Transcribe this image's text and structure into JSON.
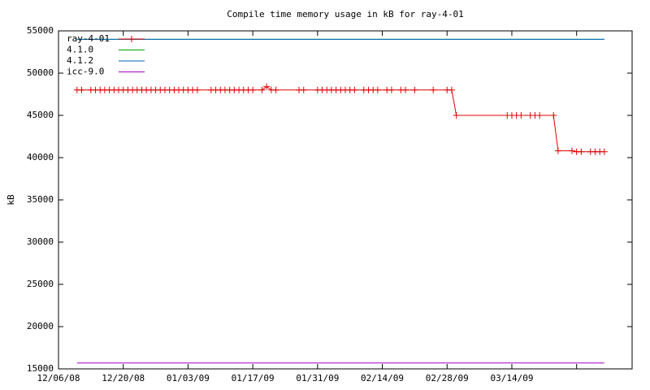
{
  "chart_data": {
    "type": "line",
    "title": "Compile time memory usage in kB for ray-4-01",
    "ylabel": "kB",
    "xlim": [
      "2008-12-06",
      "2009-04-09"
    ],
    "xticks": [
      {
        "value": "2008-12-06",
        "label": "12/06/08"
      },
      {
        "value": "2008-12-20",
        "label": "12/20/08"
      },
      {
        "value": "2009-01-03",
        "label": "01/03/09"
      },
      {
        "value": "2009-01-17",
        "label": "01/17/09"
      },
      {
        "value": "2009-01-31",
        "label": "01/31/09"
      },
      {
        "value": "2009-02-14",
        "label": "02/14/09"
      },
      {
        "value": "2009-02-28",
        "label": "02/28/09"
      },
      {
        "value": "2009-03-14",
        "label": "03/14/09"
      },
      {
        "value": "2009-03-28",
        "label": null
      }
    ],
    "ylim": [
      15000,
      55000
    ],
    "yticks": [
      15000,
      20000,
      25000,
      30000,
      35000,
      40000,
      45000,
      50000,
      55000
    ],
    "legend": "top-left",
    "series": [
      {
        "name": "ray-4-01",
        "color": "#e00000",
        "markers": true,
        "x": [
          "2008-12-10",
          "2008-12-11",
          "2008-12-13",
          "2008-12-14",
          "2008-12-15",
          "2008-12-16",
          "2008-12-17",
          "2008-12-18",
          "2008-12-19",
          "2008-12-20",
          "2008-12-21",
          "2008-12-22",
          "2008-12-23",
          "2008-12-24",
          "2008-12-25",
          "2008-12-26",
          "2008-12-27",
          "2008-12-28",
          "2008-12-29",
          "2008-12-30",
          "2008-12-31",
          "2009-01-01",
          "2009-01-02",
          "2009-01-03",
          "2009-01-04",
          "2009-01-05",
          "2009-01-08",
          "2009-01-09",
          "2009-01-10",
          "2009-01-11",
          "2009-01-12",
          "2009-01-13",
          "2009-01-14",
          "2009-01-15",
          "2009-01-16",
          "2009-01-17",
          "2009-01-19",
          "2009-01-20",
          "2009-01-21",
          "2009-01-22",
          "2009-01-27",
          "2009-01-28",
          "2009-01-31",
          "2009-02-01",
          "2009-02-02",
          "2009-02-03",
          "2009-02-04",
          "2009-02-05",
          "2009-02-06",
          "2009-02-07",
          "2009-02-08",
          "2009-02-10",
          "2009-02-11",
          "2009-02-12",
          "2009-02-13",
          "2009-02-15",
          "2009-02-16",
          "2009-02-18",
          "2009-02-19",
          "2009-02-21",
          "2009-02-25",
          "2009-02-28",
          "2009-03-01",
          "2009-03-02",
          "2009-03-13",
          "2009-03-14",
          "2009-03-15",
          "2009-03-16",
          "2009-03-18",
          "2009-03-19",
          "2009-03-20",
          "2009-03-23",
          "2009-03-24",
          "2009-03-27",
          "2009-03-28",
          "2009-03-29",
          "2009-03-31",
          "2009-04-01",
          "2009-04-02",
          "2009-04-03"
        ],
        "values": [
          48000,
          48000,
          48000,
          48000,
          48000,
          48000,
          48000,
          48000,
          48000,
          48000,
          48000,
          48000,
          48000,
          48000,
          48000,
          48000,
          48000,
          48000,
          48000,
          48000,
          48000,
          48000,
          48000,
          48000,
          48000,
          48000,
          48000,
          48000,
          48000,
          48000,
          48000,
          48000,
          48000,
          48000,
          48000,
          48000,
          48000,
          48400,
          48000,
          48000,
          48000,
          48000,
          48000,
          48000,
          48000,
          48000,
          48000,
          48000,
          48000,
          48000,
          48000,
          48000,
          48000,
          48000,
          48000,
          48000,
          48000,
          48000,
          48000,
          48000,
          48000,
          48000,
          48000,
          45000,
          45000,
          45000,
          45000,
          45000,
          45000,
          45000,
          45000,
          45000,
          40800,
          40800,
          40700,
          40700,
          40700,
          40700,
          40700,
          40700
        ]
      },
      {
        "name": "4.1.0",
        "color": "#00a000",
        "x": [
          "2008-12-10",
          "2009-04-03"
        ],
        "values": [
          54000,
          54000
        ]
      },
      {
        "name": "4.1.2",
        "color": "#0060c0",
        "x": [
          "2008-12-10",
          "2009-04-03"
        ],
        "values": [
          54000,
          54000
        ]
      },
      {
        "name": "icc-9.0",
        "color": "#a000c0",
        "x": [
          "2008-12-10",
          "2009-04-03"
        ],
        "values": [
          15700,
          15700
        ]
      }
    ]
  }
}
